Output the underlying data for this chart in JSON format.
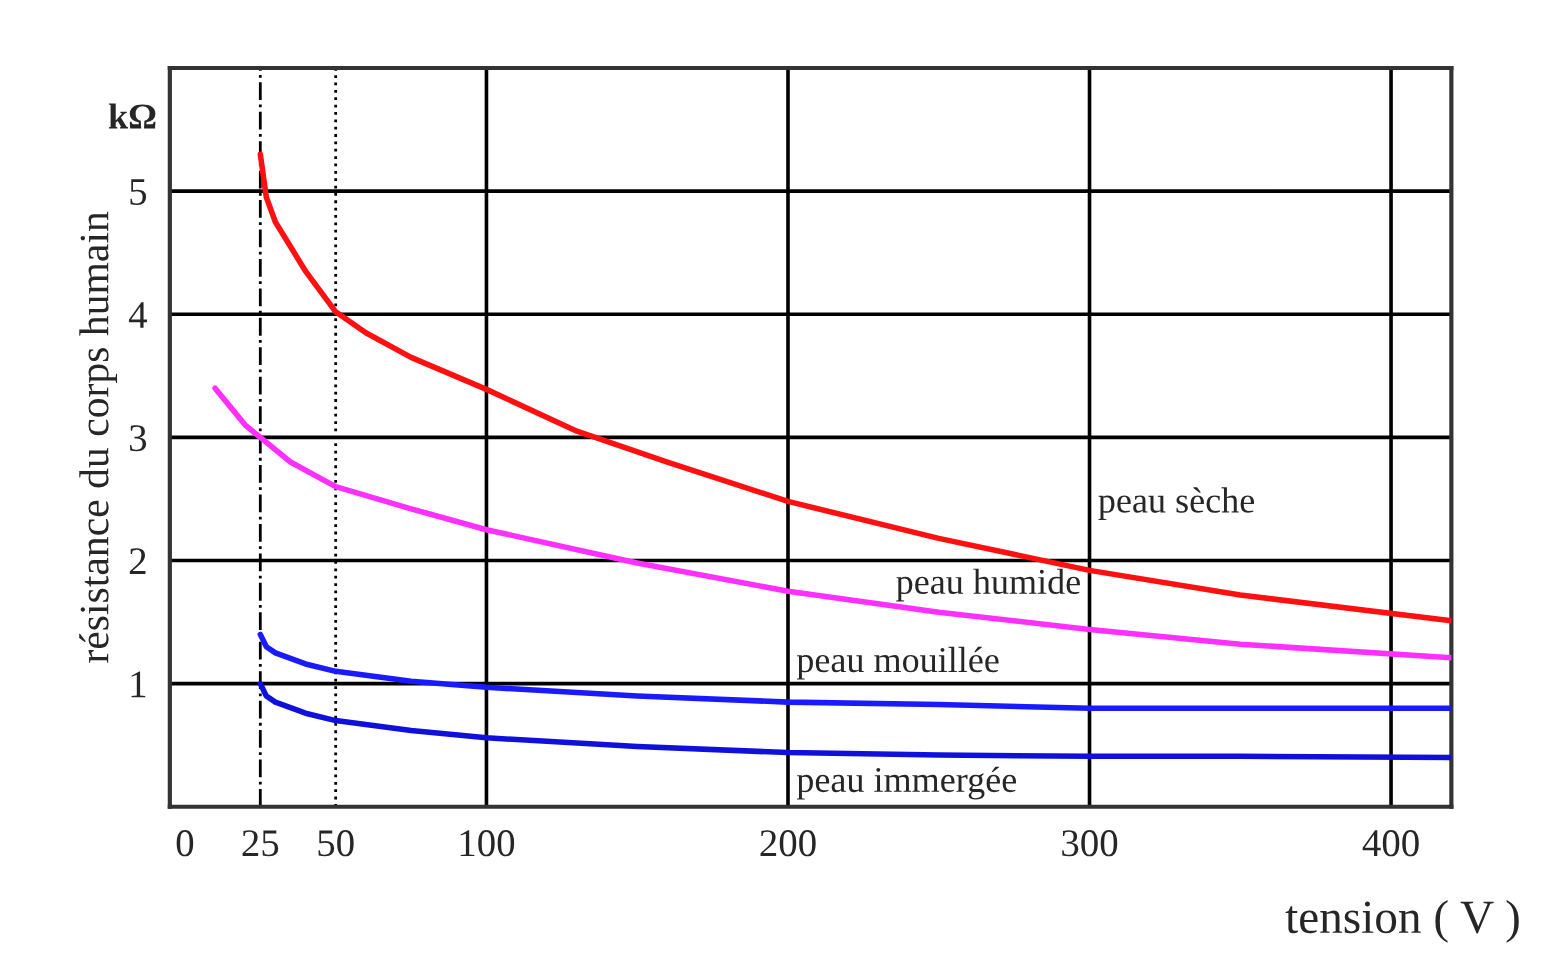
{
  "chart_data": {
    "type": "line",
    "xlabel": "tension ( V )",
    "ylabel": "résistance du corps humain",
    "xlim": [
      -5,
      420
    ],
    "ylim": [
      0,
      6
    ],
    "xticks": [
      0,
      25,
      50,
      100,
      200,
      300,
      400
    ],
    "yticks": [
      1,
      2,
      3,
      4,
      5
    ],
    "grid": false,
    "legend": false,
    "line_style": "solid",
    "marker": "none",
    "series": [
      {
        "name": "peau sèche",
        "color": "#ff1010",
        "x": [
          25,
          27,
          30,
          35,
          40,
          50,
          60,
          75,
          100,
          130,
          160,
          200,
          250,
          300,
          350,
          420
        ],
        "values": [
          5.3,
          4.95,
          4.75,
          4.55,
          4.35,
          4.02,
          3.85,
          3.65,
          3.39,
          3.05,
          2.8,
          2.48,
          2.18,
          1.92,
          1.72,
          1.51
        ]
      },
      {
        "name": "peau humide",
        "color": "#ff30ff",
        "x": [
          10,
          15,
          20,
          25,
          35,
          50,
          75,
          100,
          150,
          200,
          250,
          300,
          350,
          420
        ],
        "values": [
          3.4,
          3.25,
          3.1,
          3.0,
          2.8,
          2.6,
          2.42,
          2.25,
          1.98,
          1.75,
          1.58,
          1.44,
          1.32,
          1.21
        ]
      },
      {
        "name": "peau mouillée",
        "color": "#1a1aff",
        "x": [
          25,
          27,
          30,
          40,
          50,
          75,
          100,
          150,
          200,
          250,
          300,
          350,
          420
        ],
        "values": [
          1.4,
          1.3,
          1.25,
          1.16,
          1.1,
          1.02,
          0.97,
          0.9,
          0.85,
          0.83,
          0.8,
          0.8,
          0.8
        ]
      },
      {
        "name": "peau immergée",
        "color": "#1010dd",
        "x": [
          25,
          27,
          30,
          40,
          50,
          75,
          100,
          150,
          200,
          250,
          300,
          350,
          420
        ],
        "values": [
          1.0,
          0.9,
          0.85,
          0.76,
          0.7,
          0.62,
          0.56,
          0.49,
          0.44,
          0.42,
          0.41,
          0.41,
          0.4
        ]
      }
    ],
    "ref_lines": [
      {
        "axis": "x",
        "value": 25,
        "line_style": "dashed",
        "color": "#000000"
      },
      {
        "axis": "x",
        "value": 50,
        "line_style": "dotted",
        "color": "#000000"
      },
      {
        "axis": "x",
        "value": 100,
        "line_style": "solid",
        "color": "#000000"
      },
      {
        "axis": "x",
        "value": 200,
        "line_style": "solid",
        "color": "#000000"
      },
      {
        "axis": "x",
        "value": 300,
        "line_style": "solid",
        "color": "#000000"
      },
      {
        "axis": "x",
        "value": 400,
        "line_style": "solid",
        "color": "#000000"
      },
      {
        "axis": "y",
        "value": 1,
        "line_style": "solid",
        "color": "#000000"
      },
      {
        "axis": "y",
        "value": 2,
        "line_style": "solid",
        "color": "#000000"
      },
      {
        "axis": "y",
        "value": 3,
        "line_style": "solid",
        "color": "#000000"
      },
      {
        "axis": "y",
        "value": 4,
        "line_style": "solid",
        "color": "#000000"
      },
      {
        "axis": "y",
        "value": 5,
        "line_style": "solid",
        "color": "#000000"
      }
    ],
    "annotations": [
      "kΩ"
    ]
  }
}
